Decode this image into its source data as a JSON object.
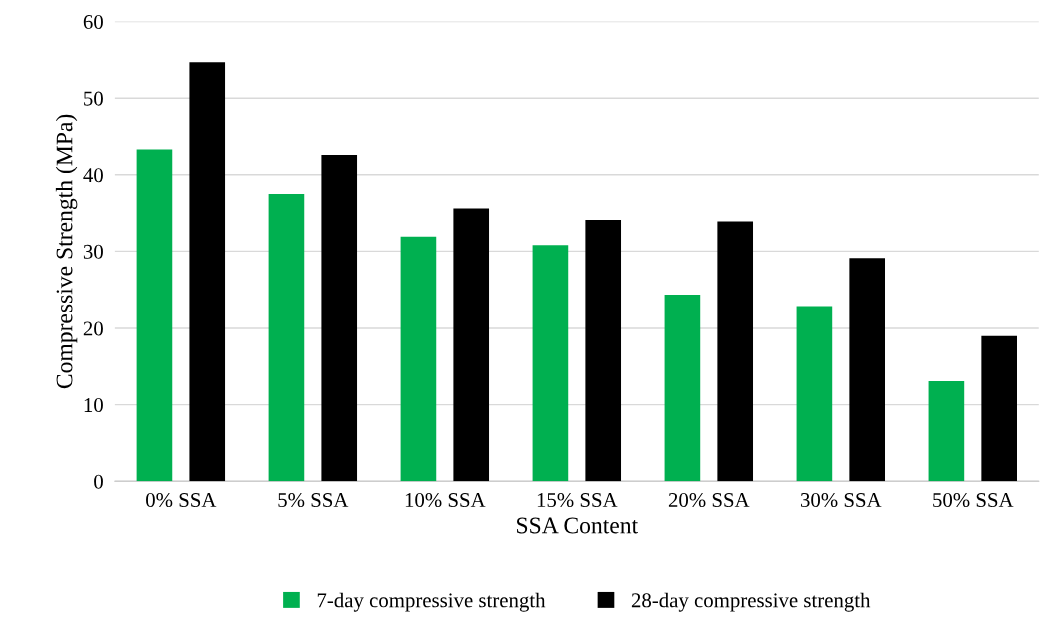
{
  "chart_data": {
    "type": "bar",
    "xlabel": "SSA Content",
    "ylabel": "Compressive Strength (MPa)",
    "categories": [
      "0% SSA",
      "5% SSA",
      "10% SSA",
      "15% SSA",
      "20% SSA",
      "30% SSA",
      "50% SSA"
    ],
    "series": [
      {
        "name": "7-day compressive strength",
        "color": "#00b050",
        "values": [
          43.3,
          37.5,
          31.9,
          30.8,
          24.3,
          22.8,
          13.1
        ]
      },
      {
        "name": "28-day compressive strength",
        "color": "#000000",
        "values": [
          54.7,
          42.6,
          35.6,
          34.1,
          33.9,
          29.1,
          19.0
        ]
      }
    ],
    "ylim": [
      0,
      60
    ],
    "yticks": [
      0,
      10,
      20,
      30,
      40,
      50,
      60
    ],
    "grid": "y",
    "legend": "bottom"
  }
}
